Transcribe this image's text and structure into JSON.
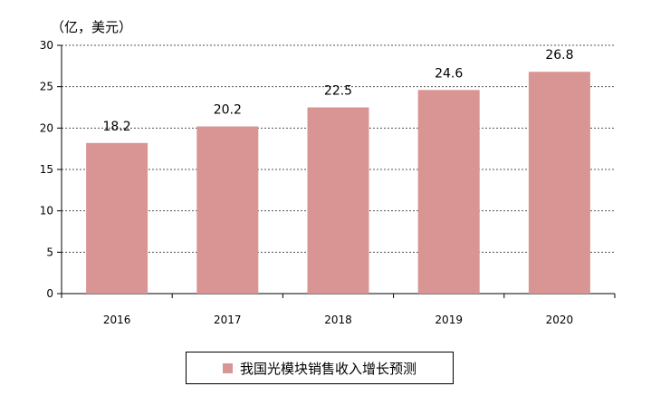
{
  "chart_data": {
    "type": "bar",
    "unit_label": "（亿，美元）",
    "categories": [
      "2016",
      "2017",
      "2018",
      "2019",
      "2020"
    ],
    "series": [
      {
        "name": "我国光模块销售收入增长预测",
        "values": [
          18.2,
          20.2,
          22.5,
          24.6,
          26.8
        ]
      }
    ],
    "data_labels": [
      "18.2",
      "20.2",
      "22.5",
      "24.6",
      "26.8"
    ],
    "ylim": [
      0,
      30
    ],
    "yticks": [
      0,
      5,
      10,
      15,
      20,
      25,
      30
    ],
    "grid": true,
    "legend_position": "bottom",
    "bar_color": "#d99594"
  }
}
